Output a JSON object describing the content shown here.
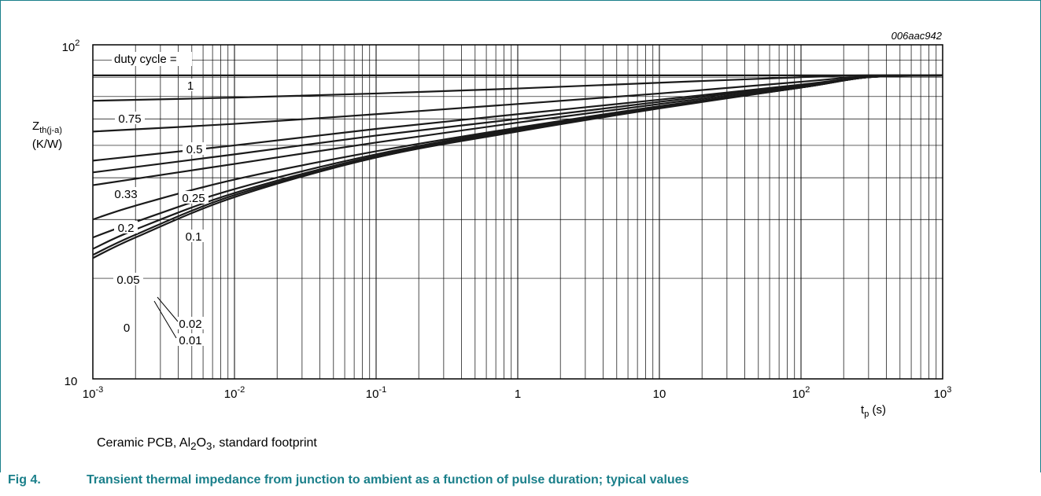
{
  "chart_data": {
    "type": "line",
    "figure_code": "006aac942",
    "xlabel": "t",
    "xlabel_sub": "p",
    "xunit": " (s)",
    "ylabel": "Z",
    "ylabel_sub": "th(j-a)",
    "yunit": "(K/W)",
    "x_scale": "log",
    "y_scale": "log",
    "xlim": [
      0.001,
      1000
    ],
    "ylim": [
      10,
      100
    ],
    "grid": true,
    "xticks": [
      {
        "value": 0.001,
        "base": "10",
        "exp": "-3"
      },
      {
        "value": 0.01,
        "base": "10",
        "exp": "-2"
      },
      {
        "value": 0.1,
        "base": "10",
        "exp": "-1"
      },
      {
        "value": 1,
        "base": "1",
        "exp": ""
      },
      {
        "value": 10,
        "base": "10",
        "exp": ""
      },
      {
        "value": 100,
        "base": "10",
        "exp": "2"
      },
      {
        "value": 1000,
        "base": "10",
        "exp": "3"
      }
    ],
    "yticks": [
      {
        "value": 10,
        "base": "10",
        "exp": ""
      },
      {
        "value": 100,
        "base": "10",
        "exp": "2"
      }
    ],
    "legend_title": "duty cycle =",
    "series": [
      {
        "name": "1",
        "points": [
          [
            0.001,
            81
          ],
          [
            1000,
            81
          ]
        ]
      },
      {
        "name": "0.75",
        "points": [
          [
            0.001,
            68
          ],
          [
            0.01,
            69.5
          ],
          [
            0.1,
            71.5
          ],
          [
            1,
            74
          ],
          [
            10,
            77
          ],
          [
            100,
            80
          ],
          [
            300,
            81
          ],
          [
            1000,
            81
          ]
        ]
      },
      {
        "name": "0.5",
        "points": [
          [
            0.001,
            55
          ],
          [
            0.01,
            58
          ],
          [
            0.1,
            62
          ],
          [
            1,
            66.5
          ],
          [
            10,
            71.5
          ],
          [
            100,
            77.5
          ],
          [
            300,
            80.5
          ],
          [
            1000,
            81
          ]
        ]
      },
      {
        "name": "0.33",
        "points": [
          [
            0.001,
            45
          ],
          [
            0.01,
            50
          ],
          [
            0.1,
            56
          ],
          [
            1,
            62
          ],
          [
            10,
            68.5
          ],
          [
            100,
            76
          ],
          [
            300,
            80
          ],
          [
            1000,
            81
          ]
        ]
      },
      {
        "name": "0.25",
        "points": [
          [
            0.001,
            41.5
          ],
          [
            0.01,
            47
          ],
          [
            0.1,
            53.5
          ],
          [
            1,
            60
          ],
          [
            10,
            67.5
          ],
          [
            100,
            75.5
          ],
          [
            300,
            80
          ],
          [
            1000,
            81
          ]
        ]
      },
      {
        "name": "0.2",
        "points": [
          [
            0.001,
            38
          ],
          [
            0.01,
            44
          ],
          [
            0.1,
            51
          ],
          [
            1,
            58.5
          ],
          [
            10,
            66.5
          ],
          [
            100,
            75
          ],
          [
            300,
            80
          ],
          [
            1000,
            81
          ]
        ]
      },
      {
        "name": "0.1",
        "points": [
          [
            0.001,
            30
          ],
          [
            0.002,
            33
          ],
          [
            0.01,
            39.5
          ],
          [
            0.1,
            48
          ],
          [
            1,
            56.5
          ],
          [
            10,
            65.5
          ],
          [
            100,
            74.5
          ],
          [
            300,
            80
          ],
          [
            1000,
            81
          ]
        ]
      },
      {
        "name": "0.05",
        "points": [
          [
            0.001,
            26.5
          ],
          [
            0.002,
            29.5
          ],
          [
            0.01,
            37
          ],
          [
            0.1,
            47
          ],
          [
            1,
            56
          ],
          [
            10,
            65
          ],
          [
            100,
            74.5
          ],
          [
            300,
            80
          ],
          [
            1000,
            81
          ]
        ]
      },
      {
        "name": "0.02",
        "points": [
          [
            0.001,
            24.5
          ],
          [
            0.002,
            28
          ],
          [
            0.01,
            36
          ],
          [
            0.1,
            46.5
          ],
          [
            1,
            55.5
          ],
          [
            10,
            65
          ],
          [
            100,
            74.5
          ],
          [
            300,
            80
          ],
          [
            1000,
            81
          ]
        ]
      },
      {
        "name": "0.01",
        "points": [
          [
            0.001,
            23.5
          ],
          [
            0.002,
            27
          ],
          [
            0.01,
            35.5
          ],
          [
            0.1,
            46
          ],
          [
            1,
            55.5
          ],
          [
            10,
            65
          ],
          [
            100,
            74.5
          ],
          [
            300,
            80
          ],
          [
            1000,
            81
          ]
        ]
      },
      {
        "name": "0",
        "points": [
          [
            0.001,
            23
          ],
          [
            0.002,
            26.5
          ],
          [
            0.01,
            35
          ],
          [
            0.1,
            46
          ],
          [
            1,
            55
          ],
          [
            10,
            64.5
          ],
          [
            100,
            74.5
          ],
          [
            300,
            80
          ],
          [
            1000,
            81
          ]
        ]
      }
    ]
  },
  "note": {
    "prefix": "Ceramic PCB, Al",
    "sub1": "2",
    "mid": "O",
    "sub2": "3",
    "suffix": ", standard footprint"
  },
  "caption": {
    "number": "Fig 4.",
    "text": "Transient thermal impedance from junction to ambient as a function of pulse duration; typical values"
  },
  "colors": {
    "accent": "#1a7f8a",
    "curve": "#1a1a1a",
    "grid": "#000000"
  }
}
